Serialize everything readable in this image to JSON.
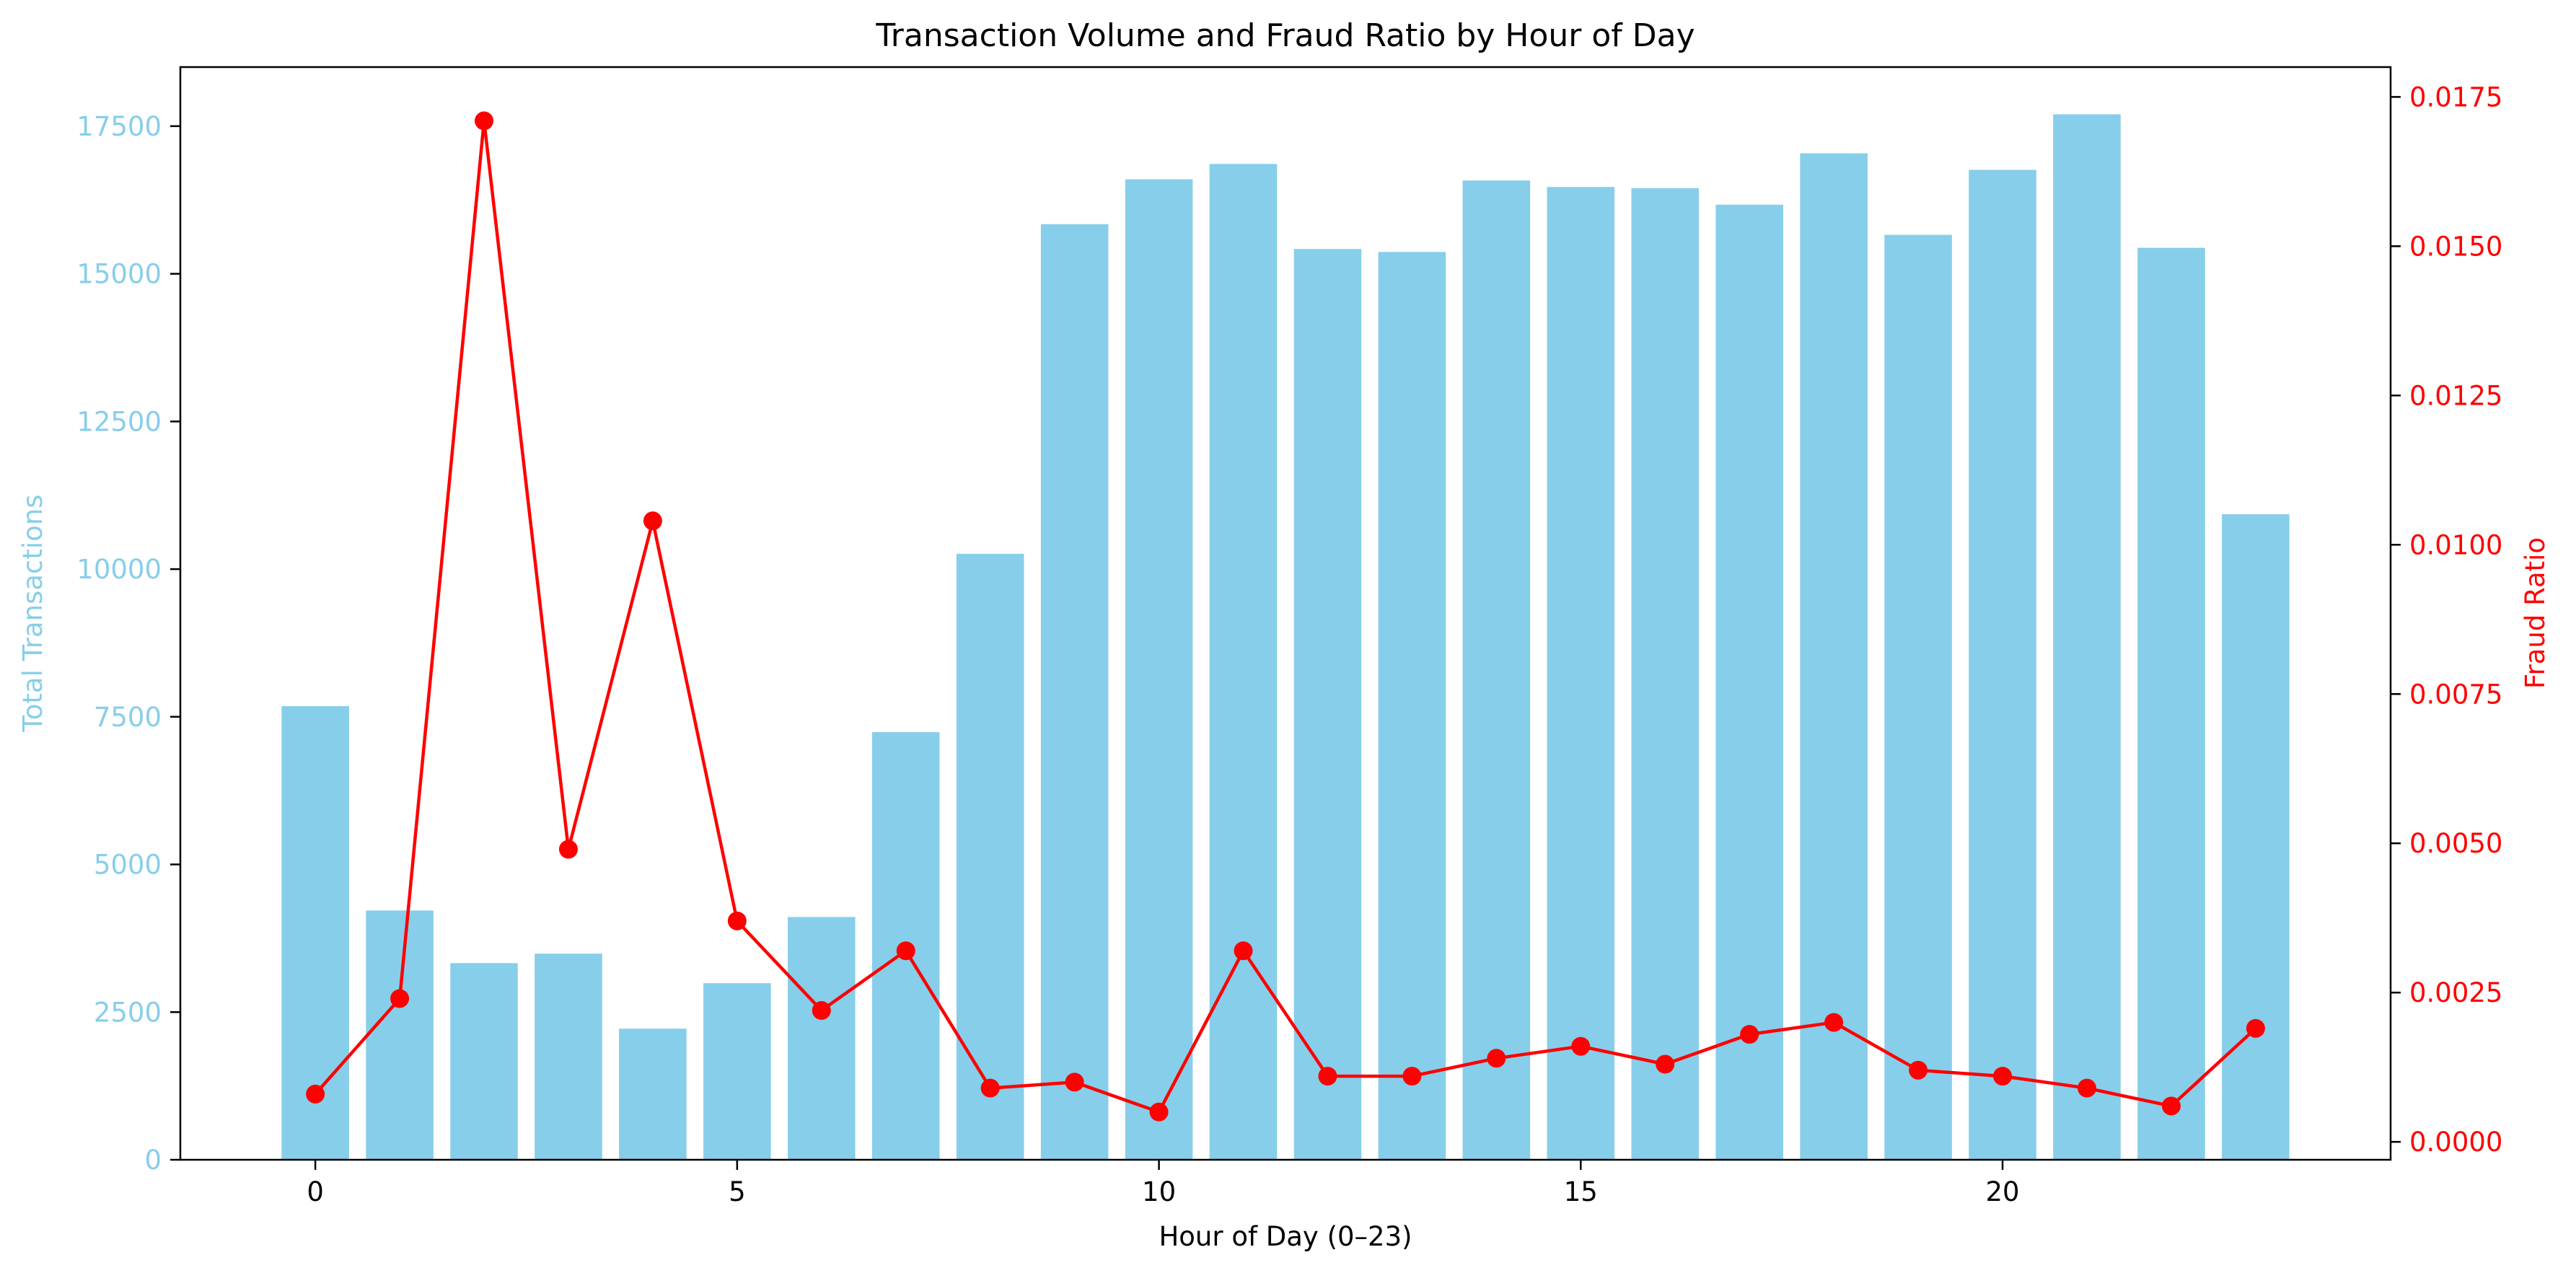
{
  "chart_data": {
    "type": "bar",
    "title": "Transaction Volume and Fraud Ratio by Hour of Day",
    "xlabel": "Hour of Day (0–23)",
    "ylabel": "Total Transactions",
    "ylabel_right": "Fraud Ratio",
    "x": [
      0,
      1,
      2,
      3,
      4,
      5,
      6,
      7,
      8,
      9,
      10,
      11,
      12,
      13,
      14,
      15,
      16,
      17,
      18,
      19,
      20,
      21,
      22,
      23
    ],
    "xlim": [
      -1.6,
      24.6
    ],
    "x_ticks": [
      0,
      5,
      10,
      15,
      20
    ],
    "x_tick_labels": [
      "0",
      "5",
      "10",
      "15",
      "20"
    ],
    "ylim": [
      0,
      18500
    ],
    "y_ticks": [
      0,
      2500,
      5000,
      7500,
      10000,
      12500,
      15000,
      17500
    ],
    "y_tick_labels": [
      "0",
      "2500",
      "5000",
      "7500",
      "10000",
      "12500",
      "15000",
      "17500"
    ],
    "ylim_right": [
      -0.0003,
      0.018
    ],
    "y_ticks_right": [
      0,
      0.0025,
      0.005,
      0.0075,
      0.01,
      0.0125,
      0.015,
      0.0175
    ],
    "y_tick_labels_right": [
      "0.0000",
      "0.0025",
      "0.0050",
      "0.0075",
      "0.0100",
      "0.0125",
      "0.0150",
      "0.0175"
    ],
    "grid": false,
    "series": [
      {
        "type": "bar",
        "axis": "left",
        "color": "#87CEEB",
        "values": [
          7680,
          4220,
          3330,
          3490,
          2220,
          2990,
          4110,
          7240,
          10260,
          15840,
          16600,
          16860,
          15420,
          15370,
          16580,
          16470,
          16450,
          16170,
          17040,
          15660,
          16760,
          17700,
          15440,
          10930
        ]
      },
      {
        "type": "line",
        "axis": "right",
        "color": "#FF0000",
        "marker": "circle",
        "values": [
          0.0008,
          0.0024,
          0.0171,
          0.0049,
          0.0104,
          0.0037,
          0.0022,
          0.0032,
          0.0009,
          0.001,
          0.0005,
          0.0032,
          0.0011,
          0.0011,
          0.0014,
          0.0016,
          0.0013,
          0.0018,
          0.002,
          0.0012,
          0.0011,
          0.0009,
          0.0006,
          0.0019
        ]
      }
    ],
    "colors": {
      "left_axis": "#87CEEB",
      "right_axis": "#FF0000",
      "text": "#000000"
    }
  }
}
